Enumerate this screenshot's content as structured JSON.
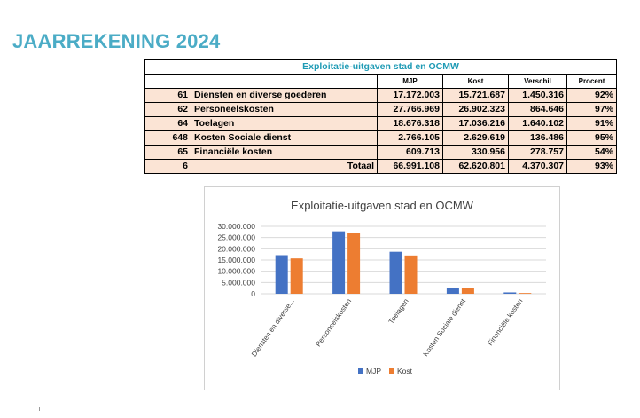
{
  "page": {
    "title": "JAARREKENING 2024"
  },
  "table": {
    "caption": "Exploitatie-uitgaven stad en OCMW",
    "headers": [
      "MJP",
      "Kost",
      "Verschil",
      "Procent"
    ],
    "rows": [
      {
        "code": "61",
        "label": "Diensten en diverse goederen",
        "mjp": "17.172.003",
        "kost": "15.721.687",
        "verschil": "1.450.316",
        "procent": "92%"
      },
      {
        "code": "62",
        "label": "Personeelskosten",
        "mjp": "27.766.969",
        "kost": "26.902.323",
        "verschil": "864.646",
        "procent": "97%"
      },
      {
        "code": "64",
        "label": "Toelagen",
        "mjp": "18.676.318",
        "kost": "17.036.216",
        "verschil": "1.640.102",
        "procent": "91%"
      },
      {
        "code": "648",
        "label": "Kosten Sociale dienst",
        "mjp": "2.766.105",
        "kost": "2.629.619",
        "verschil": "136.486",
        "procent": "95%"
      },
      {
        "code": "65",
        "label": "Financiële kosten",
        "mjp": "609.713",
        "kost": "330.956",
        "verschil": "278.757",
        "procent": "54%"
      }
    ],
    "total": {
      "code": "6",
      "label": "Totaal",
      "mjp": "66.991.108",
      "kost": "62.620.801",
      "verschil": "4.370.307",
      "procent": "93%"
    }
  },
  "chart_data": {
    "type": "bar",
    "title": "Exploitatie-uitgaven stad en OCMW",
    "categories": [
      "Diensten en diverse...",
      "Personeelskosten",
      "Toelagen",
      "Kosten Sociale dienst",
      "Financiële kosten"
    ],
    "series": [
      {
        "name": "MJP",
        "color": "#4472c4",
        "values": [
          17172003,
          27766969,
          18676318,
          2766105,
          609713
        ]
      },
      {
        "name": "Kost",
        "color": "#ed7d31",
        "values": [
          15721687,
          26902323,
          17036216,
          2629619,
          330956
        ]
      }
    ],
    "ylim": [
      0,
      30000000
    ],
    "yticks": [
      0,
      5000000,
      10000000,
      15000000,
      20000000,
      25000000,
      30000000
    ],
    "ytick_labels": [
      "0",
      "5.000.000",
      "10.000.000",
      "15.000.000",
      "20.000.000",
      "25.000.000",
      "30.000.000"
    ],
    "grid": true,
    "legend_position": "bottom"
  }
}
